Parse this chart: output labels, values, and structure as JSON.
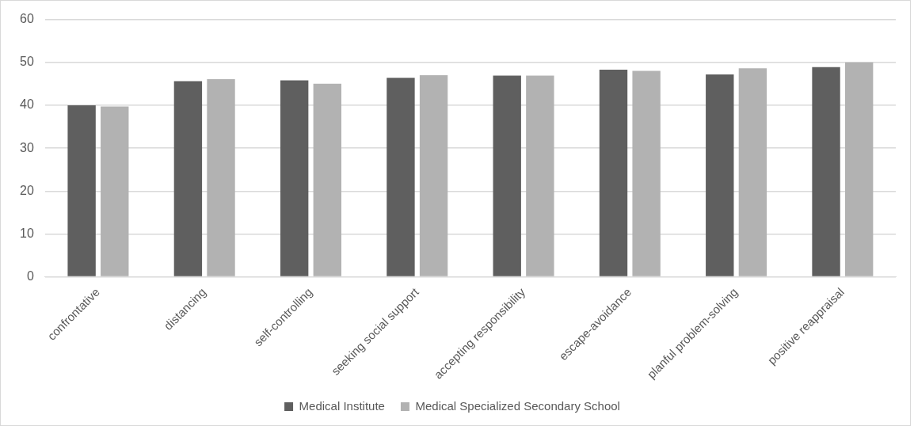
{
  "chart_data": {
    "type": "bar",
    "categories": [
      "confrontative",
      "distancing",
      "self-controlling",
      "seeking social support",
      "accepting responsibility",
      "escape-avoidance",
      "planful problem-solving",
      "positive reappraisal"
    ],
    "series": [
      {
        "name": "Medical Institute",
        "color": "#5f5f5f",
        "values": [
          40.0,
          45.6,
          45.8,
          46.4,
          46.9,
          48.3,
          47.2,
          48.9
        ]
      },
      {
        "name": "Medical Specialized Secondary School",
        "color": "#b2b2b2",
        "values": [
          39.7,
          46.1,
          45.0,
          47.0,
          46.9,
          48.0,
          48.6,
          50.0
        ]
      }
    ],
    "ylim": [
      0,
      60
    ],
    "yticks": [
      0,
      10,
      20,
      30,
      40,
      50,
      60
    ],
    "grid": "y",
    "legend": "bottom"
  }
}
